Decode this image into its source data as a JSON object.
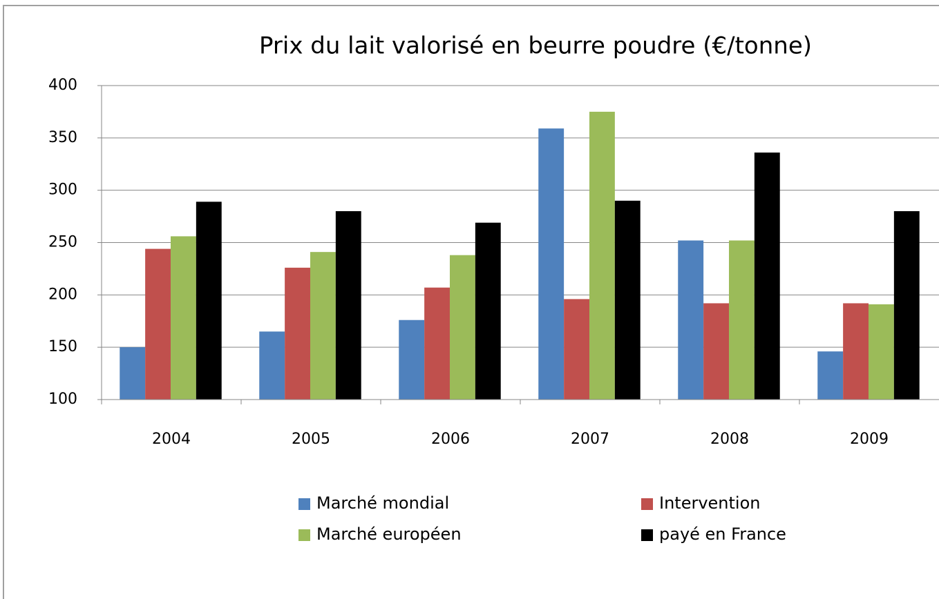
{
  "chart_data": {
    "type": "bar",
    "title": "Prix du lait valorisé en beurre poudre (€/tonne)",
    "categories": [
      "2004",
      "2005",
      "2006",
      "2007",
      "2008",
      "2009"
    ],
    "series": [
      {
        "name": "Marché mondial",
        "color": "#4f81bd",
        "values": [
          150,
          165,
          176,
          359,
          252,
          146
        ]
      },
      {
        "name": "Intervention",
        "color": "#c0504d",
        "values": [
          244,
          226,
          207,
          196,
          192,
          192
        ]
      },
      {
        "name": "Marché européen",
        "color": "#9bbb59",
        "values": [
          256,
          241,
          238,
          375,
          252,
          191
        ]
      },
      {
        "name": "payé en France",
        "color": "#000000",
        "values": [
          289,
          280,
          269,
          290,
          336,
          280
        ]
      }
    ],
    "ylim": [
      100,
      400
    ],
    "yticks": [
      100,
      150,
      200,
      250,
      300,
      350,
      400
    ],
    "grid": true,
    "legend": "bottom"
  }
}
